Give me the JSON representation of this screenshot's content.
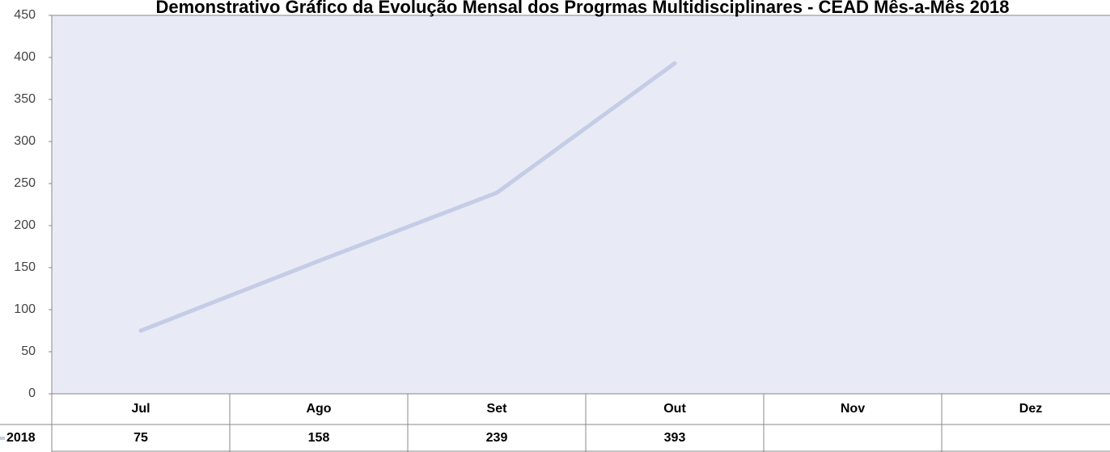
{
  "chart_data": {
    "type": "line",
    "title": "Demonstrativo Gráfico da Evolução Mensal dos Progrmas Multidisciplinares - CEAD Mês-a-Mês 2018",
    "categories": [
      "Jul",
      "Ago",
      "Set",
      "Out",
      "Nov",
      "Dez"
    ],
    "series": [
      {
        "name": "2018",
        "color": "#c5cce6",
        "values": [
          75,
          158,
          239,
          393,
          null,
          null
        ]
      }
    ],
    "ylim": [
      0,
      450
    ],
    "yticks": [
      0,
      50,
      100,
      150,
      200,
      250,
      300,
      350,
      400,
      450
    ],
    "plot_background": "#e8eaf5"
  }
}
